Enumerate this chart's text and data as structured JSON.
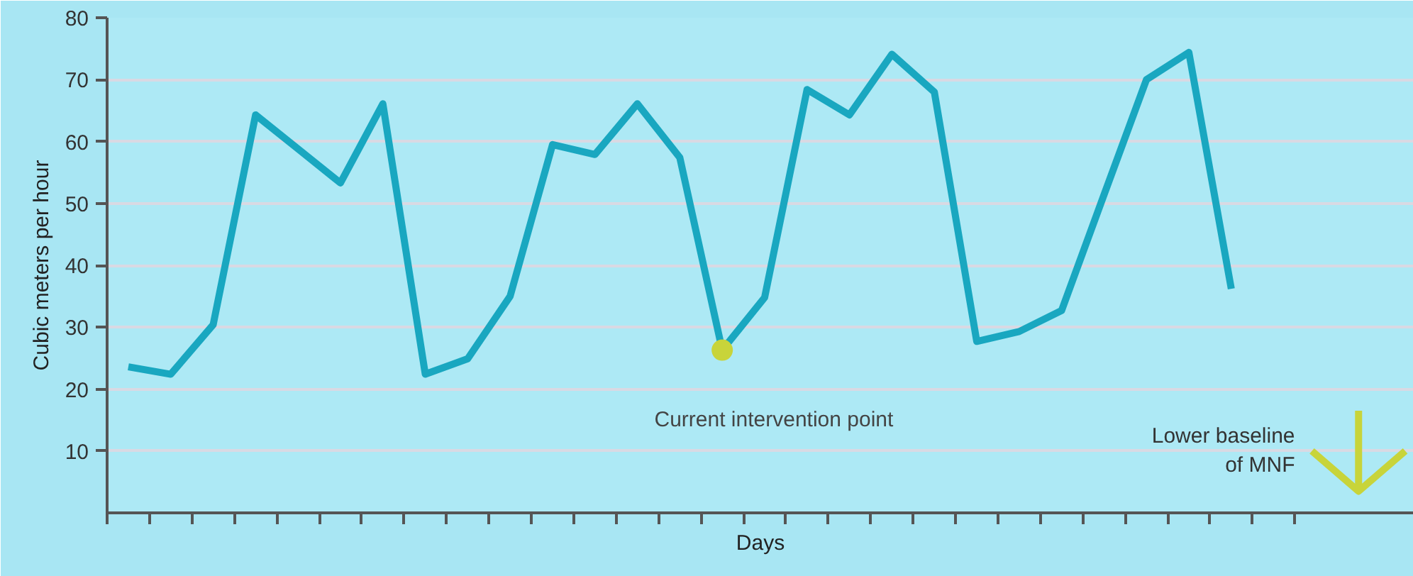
{
  "chart_data": {
    "type": "line",
    "xlabel": "Days",
    "ylabel": "Cubic meters per hour",
    "categories": [
      null,
      null,
      null,
      null,
      null,
      null,
      null,
      null,
      null,
      null,
      null,
      null,
      null,
      null,
      null,
      null,
      null,
      null,
      null,
      null,
      null,
      null,
      null,
      null,
      null,
      null,
      null,
      null
    ],
    "series": [
      {
        "color": "#19a7c0",
        "values": [
          23.6,
          22.4,
          30.4,
          64.3,
          58.8,
          53.3,
          66.1,
          22.4,
          24.9,
          35.0,
          59.5,
          57.9,
          66.1,
          57.4,
          26.3,
          34.8,
          68.4,
          64.3,
          74.1,
          68.0,
          27.7,
          29.3,
          32.7,
          51.4,
          70.0,
          74.4,
          36.2,
          null
        ]
      },
      {
        "type": "scatter",
        "marker": "circle",
        "color": "#c8d43a",
        "values": [
          null,
          null,
          null,
          null,
          null,
          null,
          null,
          null,
          null,
          null,
          null,
          null,
          null,
          null,
          26.3,
          null,
          null,
          null,
          null,
          null,
          null,
          null,
          null,
          null,
          null,
          null,
          null,
          null
        ]
      }
    ],
    "ylim": [
      0,
      80
    ],
    "yticks": [
      10,
      20,
      30,
      40,
      50,
      60,
      70,
      80
    ],
    "tick_labels": "y",
    "grid": "y",
    "marker": "none",
    "line_style": "solid",
    "annotations": [
      "Current intervention point",
      "Lower baseline\nof MNF"
    ]
  }
}
